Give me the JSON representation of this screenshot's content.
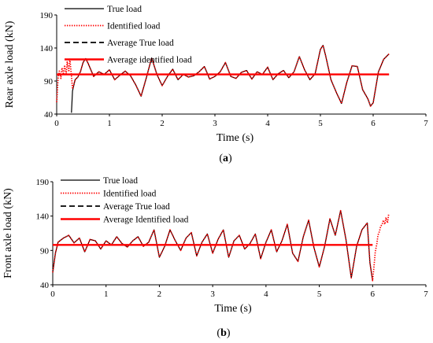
{
  "chart_data": [
    {
      "type": "line",
      "panel": "(a)",
      "panel_letter": "a",
      "xlabel": "Time (s)",
      "ylabel": "Rear axle load (kN)",
      "xlim": [
        0,
        7
      ],
      "ylim": [
        40,
        190
      ],
      "xticks": [
        0,
        1,
        2,
        3,
        4,
        5,
        6,
        7
      ],
      "yticks": [
        40,
        90,
        140,
        190
      ],
      "legend_position": "top-left",
      "series": [
        {
          "name": "True load",
          "style": "solid",
          "color": "#000000",
          "x": [
            0.28,
            0.3,
            0.35,
            0.4,
            0.45,
            0.5,
            0.55,
            0.6,
            0.7,
            0.8,
            0.9,
            1.0,
            1.1,
            1.2,
            1.3,
            1.4,
            1.5,
            1.6,
            1.7,
            1.8,
            1.9,
            2.0,
            2.1,
            2.2,
            2.3,
            2.4,
            2.5,
            2.6,
            2.7,
            2.8,
            2.9,
            3.0,
            3.1,
            3.2,
            3.3,
            3.4,
            3.5,
            3.6,
            3.7,
            3.8,
            3.9,
            4.0,
            4.1,
            4.2,
            4.3,
            4.4,
            4.5,
            4.6,
            4.7,
            4.8,
            4.9,
            5.0,
            5.05,
            5.1,
            5.2,
            5.3,
            5.4,
            5.5,
            5.6,
            5.7,
            5.8,
            5.9,
            5.95,
            6.0,
            6.1,
            6.2,
            6.3
          ],
          "y": [
            42,
            75,
            92,
            96,
            104,
            118,
            124,
            116,
            97,
            104,
            100,
            107,
            92,
            99,
            105,
            98,
            84,
            67,
            95,
            125,
            100,
            83,
            97,
            108,
            92,
            100,
            96,
            98,
            104,
            112,
            93,
            97,
            104,
            118,
            97,
            94,
            103,
            106,
            93,
            104,
            100,
            111,
            92,
            101,
            106,
            95,
            104,
            127,
            107,
            92,
            101,
            138,
            144,
            128,
            92,
            73,
            56,
            88,
            113,
            112,
            77,
            63,
            52,
            57,
            104,
            123,
            131
          ]
        },
        {
          "name": "Identified load",
          "style": "dotted",
          "color": "#ff0000",
          "x": [
            0.0,
            0.03,
            0.05,
            0.08,
            0.1,
            0.13,
            0.15,
            0.18,
            0.2,
            0.23,
            0.25,
            0.28,
            0.3,
            0.35,
            0.4,
            0.45,
            0.5,
            0.55,
            0.6,
            0.7,
            0.8,
            0.9,
            1.0,
            1.1,
            1.2,
            1.3,
            1.4,
            1.5,
            1.6,
            1.7,
            1.8,
            1.9,
            2.0,
            2.1,
            2.2,
            2.3,
            2.4,
            2.5,
            2.6,
            2.7,
            2.8,
            2.9,
            3.0,
            3.1,
            3.2,
            3.3,
            3.4,
            3.5,
            3.6,
            3.7,
            3.8,
            3.9,
            4.0,
            4.1,
            4.2,
            4.3,
            4.4,
            4.5,
            4.6,
            4.7,
            4.8,
            4.9,
            5.0,
            5.05,
            5.1,
            5.2,
            5.3,
            5.4,
            5.5,
            5.6,
            5.7,
            5.8,
            5.9,
            5.95,
            6.0,
            6.1,
            6.2,
            6.3
          ],
          "y": [
            58,
            97,
            105,
            94,
            110,
            100,
            114,
            101,
            119,
            104,
            123,
            98,
            78,
            92,
            96,
            104,
            118,
            124,
            116,
            97,
            104,
            100,
            107,
            92,
            99,
            105,
            98,
            84,
            67,
            95,
            125,
            100,
            83,
            97,
            108,
            92,
            100,
            96,
            98,
            104,
            112,
            93,
            97,
            104,
            118,
            97,
            94,
            103,
            106,
            93,
            104,
            100,
            111,
            92,
            101,
            106,
            95,
            104,
            127,
            107,
            92,
            101,
            138,
            144,
            128,
            92,
            73,
            56,
            88,
            113,
            112,
            77,
            63,
            52,
            57,
            104,
            123,
            131
          ]
        },
        {
          "name": "Average True load",
          "style": "dashed",
          "color": "#000000",
          "x": [
            0.0,
            6.3
          ],
          "y": [
            100,
            100
          ]
        },
        {
          "name": "Average identified load",
          "style": "solid-thick",
          "color": "#ff0000",
          "x": [
            0.0,
            6.3
          ],
          "y": [
            100,
            100
          ]
        }
      ]
    },
    {
      "type": "line",
      "panel": "(b)",
      "panel_letter": "b",
      "xlabel": "Time (s)",
      "ylabel": "Front axle load (kN)",
      "xlim": [
        0,
        7
      ],
      "ylim": [
        40,
        190
      ],
      "xticks": [
        0,
        1,
        2,
        3,
        4,
        5,
        6,
        7
      ],
      "yticks": [
        40,
        90,
        140,
        190
      ],
      "legend_position": "top-left",
      "series": [
        {
          "name": "True load",
          "style": "solid",
          "color": "#000000",
          "x": [
            0.0,
            0.05,
            0.1,
            0.2,
            0.3,
            0.4,
            0.5,
            0.6,
            0.7,
            0.8,
            0.9,
            1.0,
            1.1,
            1.2,
            1.3,
            1.4,
            1.5,
            1.6,
            1.7,
            1.8,
            1.9,
            2.0,
            2.1,
            2.2,
            2.3,
            2.4,
            2.5,
            2.6,
            2.7,
            2.8,
            2.9,
            3.0,
            3.1,
            3.2,
            3.3,
            3.4,
            3.5,
            3.6,
            3.7,
            3.8,
            3.9,
            4.0,
            4.1,
            4.2,
            4.3,
            4.4,
            4.5,
            4.6,
            4.7,
            4.8,
            4.9,
            5.0,
            5.1,
            5.2,
            5.3,
            5.4,
            5.5,
            5.6,
            5.7,
            5.8,
            5.9,
            5.95,
            6.0
          ],
          "y": [
            58,
            86,
            102,
            108,
            112,
            101,
            108,
            88,
            106,
            104,
            92,
            104,
            98,
            110,
            100,
            95,
            104,
            110,
            96,
            102,
            120,
            80,
            96,
            120,
            104,
            90,
            108,
            116,
            82,
            102,
            114,
            86,
            106,
            120,
            80,
            104,
            112,
            92,
            100,
            114,
            78,
            102,
            120,
            88,
            104,
            128,
            86,
            74,
            110,
            134,
            94,
            66,
            96,
            136,
            112,
            148,
            106,
            50,
            96,
            120,
            130,
            72,
            46
          ]
        },
        {
          "name": "Identified load",
          "style": "dotted",
          "color": "#ff0000",
          "x": [
            0.0,
            0.05,
            0.1,
            0.2,
            0.3,
            0.4,
            0.5,
            0.6,
            0.7,
            0.8,
            0.9,
            1.0,
            1.1,
            1.2,
            1.3,
            1.4,
            1.5,
            1.6,
            1.7,
            1.8,
            1.9,
            2.0,
            2.1,
            2.2,
            2.3,
            2.4,
            2.5,
            2.6,
            2.7,
            2.8,
            2.9,
            3.0,
            3.1,
            3.2,
            3.3,
            3.4,
            3.5,
            3.6,
            3.7,
            3.8,
            3.9,
            4.0,
            4.1,
            4.2,
            4.3,
            4.4,
            4.5,
            4.6,
            4.7,
            4.8,
            4.9,
            5.0,
            5.1,
            5.2,
            5.3,
            5.4,
            5.5,
            5.6,
            5.7,
            5.8,
            5.9,
            5.95,
            6.0,
            6.03,
            6.05,
            6.08,
            6.1,
            6.13,
            6.15,
            6.18,
            6.2,
            6.23,
            6.25,
            6.28,
            6.3
          ],
          "y": [
            58,
            86,
            102,
            108,
            112,
            101,
            108,
            88,
            106,
            104,
            92,
            104,
            98,
            110,
            100,
            95,
            104,
            110,
            96,
            102,
            120,
            80,
            96,
            120,
            104,
            90,
            108,
            116,
            82,
            102,
            114,
            86,
            106,
            120,
            80,
            104,
            112,
            92,
            100,
            114,
            78,
            102,
            120,
            88,
            104,
            128,
            86,
            74,
            110,
            134,
            94,
            66,
            96,
            136,
            112,
            148,
            106,
            50,
            96,
            120,
            130,
            72,
            46,
            70,
            88,
            100,
            112,
            118,
            125,
            128,
            134,
            128,
            138,
            130,
            142
          ]
        },
        {
          "name": "Average True load",
          "style": "dashed",
          "color": "#000000",
          "x": [
            0.0,
            6.0
          ],
          "y": [
            98,
            98
          ]
        },
        {
          "name": "Average Identified load",
          "style": "solid-thick",
          "color": "#ff0000",
          "x": [
            0.0,
            6.0
          ],
          "y": [
            98,
            98
          ]
        }
      ]
    }
  ]
}
